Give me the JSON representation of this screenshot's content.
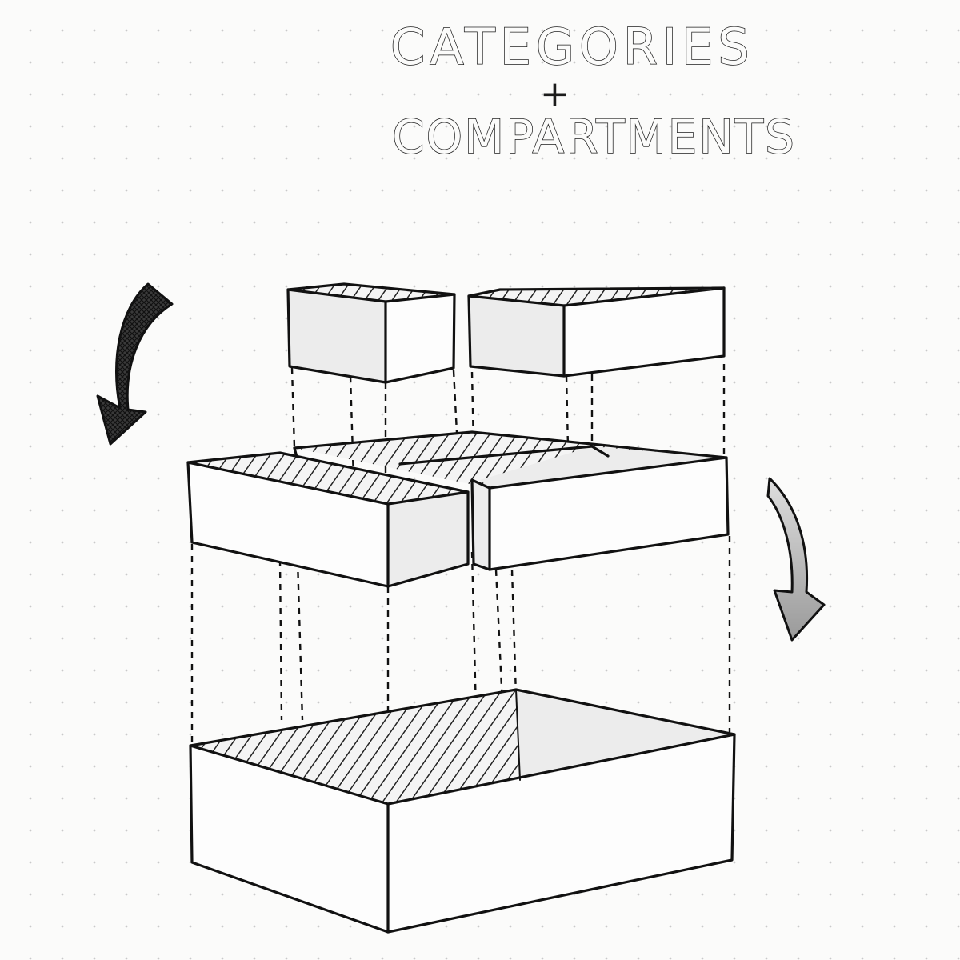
{
  "title": {
    "line1": "CATEGORIES",
    "plus": "+",
    "line2": "COMPARTMENTS"
  },
  "icons": {
    "left_arrow": "curved-arrow-down-left-icon",
    "right_arrow": "curved-arrow-down-right-icon"
  },
  "colors": {
    "ink": "#111111",
    "paper": "#fbfbfa",
    "dot_grid": "#c9c9c9"
  }
}
